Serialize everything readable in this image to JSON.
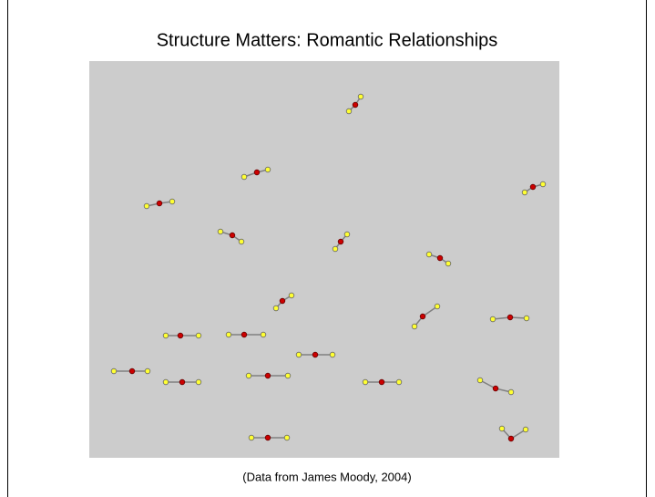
{
  "title": "Structure Matters: Romantic Relationships",
  "caption": "(Data from James Moody, 2004)"
}
